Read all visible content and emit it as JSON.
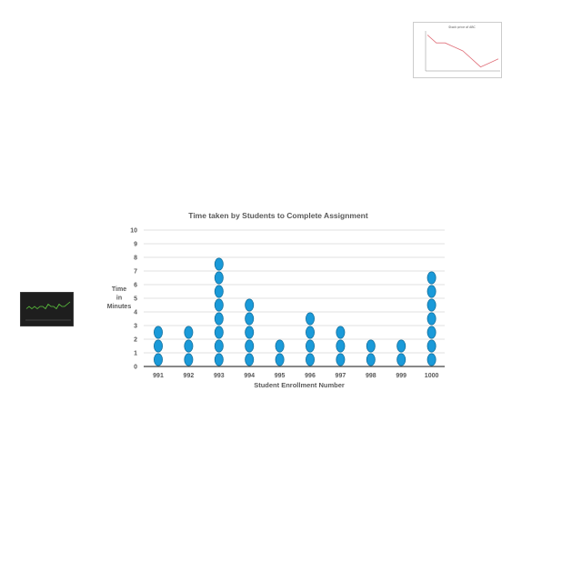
{
  "chart_data": [
    {
      "type": "dot",
      "title": "Time taken by Students to Complete Assignment",
      "xlabel": "Student Enrollment Number",
      "ylabel": [
        "Time",
        "in",
        "Minutes"
      ],
      "categories": [
        "991",
        "992",
        "993",
        "994",
        "995",
        "996",
        "997",
        "998",
        "999",
        "1000"
      ],
      "values": [
        3,
        3,
        8,
        5,
        2,
        4,
        3,
        2,
        2,
        7
      ],
      "ylim": [
        0,
        10
      ],
      "yticks": [
        "0",
        "1",
        "2",
        "3",
        "4",
        "5",
        "6",
        "7",
        "8",
        "9",
        "10"
      ],
      "grid": true,
      "colors": {
        "dot": "#1a9ad9",
        "dot_stroke": "#136f9c",
        "grid": "#d9d9d9",
        "text": "#595959"
      }
    },
    {
      "type": "line",
      "title": "Stock price of ABC",
      "series": [
        {
          "values": [
            9,
            7,
            7,
            6,
            5,
            3,
            1,
            2,
            3
          ]
        }
      ],
      "ylim": [
        0,
        10
      ],
      "colors": {
        "line": "#e0707a",
        "background": "#ffffff"
      }
    },
    {
      "type": "line",
      "series": [
        {
          "values": [
            5,
            6,
            5,
            6,
            5,
            6,
            6,
            5,
            7,
            6,
            6,
            5,
            7,
            6,
            6,
            7,
            8
          ]
        }
      ],
      "ylim": [
        0,
        10
      ],
      "colors": {
        "line": "#5fcf3f",
        "background": "#1e1e1e"
      }
    }
  ]
}
